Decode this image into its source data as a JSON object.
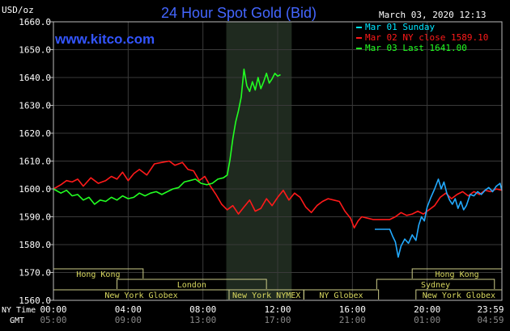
{
  "chart_data": {
    "type": "line",
    "title": "24 Hour Spot Gold (Bid)",
    "site": "www.kitco.com",
    "timestamp": "March 03, 2020 12:13",
    "ylabel": "USD/oz",
    "ylim": [
      1560,
      1660
    ],
    "y_ticks": [
      "1660.0",
      "1650.0",
      "1640.0",
      "1630.0",
      "1620.0",
      "1610.0",
      "1600.0",
      "1590.0",
      "1580.0",
      "1570.0",
      "1560.0"
    ],
    "y_tick_values": [
      1660,
      1650,
      1640,
      1630,
      1620,
      1610,
      1600,
      1590,
      1580,
      1570,
      1560
    ],
    "xlim": [
      0,
      24
    ],
    "x_ticks": [
      "00:00",
      "04:00",
      "08:00",
      "12:00",
      "16:00",
      "20:00",
      "23:59"
    ],
    "x_tick_hours": [
      0,
      4,
      8,
      12,
      16,
      20,
      24
    ],
    "gmt_ticks": [
      "05:00",
      "09:00",
      "13:00",
      "17:00",
      "21:00",
      "01:00",
      "04:59"
    ],
    "ny_time_label": "NY Time",
    "gmt_label": "GMT",
    "grid": true,
    "shaded_hours": [
      9.25,
      12.75
    ],
    "legend": [
      {
        "text": "Mar 01 Sunday",
        "color": "#00e5ff"
      },
      {
        "text": "Mar 02 NY close 1589.10",
        "color": "#ff1a1a"
      },
      {
        "text": "Mar 03 Last 1641.00",
        "color": "#22ff22"
      }
    ],
    "sessions": [
      {
        "name": "Hong Kong",
        "start": 0,
        "end": 4.8
      },
      {
        "name": "London",
        "start": 3.4,
        "end": 11.4
      },
      {
        "name": "New York Globex",
        "start": 0,
        "end": 9.4
      },
      {
        "name": "New York NYMEX",
        "start": 9.4,
        "end": 13.4
      },
      {
        "name": "NY Globex",
        "start": 13.4,
        "end": 17.4
      },
      {
        "name": "Hong Kong",
        "start": 19.2,
        "end": 24
      },
      {
        "name": "Sydney",
        "start": 17.3,
        "end": 23.6
      },
      {
        "name": "New York Globex",
        "start": 19.4,
        "end": 24
      }
    ],
    "series": [
      {
        "color": "#ff1a1a",
        "x": [
          0,
          0.4,
          0.7,
          1.0,
          1.3,
          1.6,
          2.0,
          2.4,
          2.8,
          3.1,
          3.4,
          3.7,
          4.0,
          4.3,
          4.6,
          5.0,
          5.4,
          5.8,
          6.2,
          6.5,
          6.9,
          7.2,
          7.5,
          7.8,
          8.1,
          8.4,
          8.7,
          9.0,
          9.3,
          9.6,
          9.9,
          10.2,
          10.5,
          10.8,
          11.1,
          11.4,
          11.7,
          12.0,
          12.3,
          12.6,
          12.9,
          13.2,
          13.5,
          13.8,
          14.1,
          14.4,
          14.7,
          15.0,
          15.3,
          15.6,
          15.9,
          16.1,
          16.3,
          16.5,
          16.8,
          17.1,
          17.4,
          17.7,
          18.0,
          18.3,
          18.6,
          18.9,
          19.2,
          19.5,
          19.8,
          20.1,
          20.4,
          20.7,
          21.0,
          21.3,
          21.6,
          21.9,
          22.2,
          22.5,
          22.8,
          23.1,
          23.4,
          23.7,
          24.0
        ],
        "values": [
          1600.0,
          1601.5,
          1603.0,
          1602.5,
          1603.5,
          1601.0,
          1604.0,
          1602.0,
          1603.0,
          1604.5,
          1603.5,
          1606.0,
          1603.0,
          1605.5,
          1607.0,
          1605.0,
          1609.0,
          1609.5,
          1610.0,
          1608.5,
          1609.5,
          1607.0,
          1606.5,
          1603.0,
          1604.5,
          1601.0,
          1598.0,
          1594.5,
          1592.5,
          1594.0,
          1591.0,
          1593.5,
          1596.0,
          1592.0,
          1593.0,
          1596.5,
          1594.0,
          1597.0,
          1599.5,
          1596.0,
          1598.5,
          1597.0,
          1593.5,
          1591.5,
          1594.0,
          1595.5,
          1596.5,
          1596.0,
          1595.5,
          1592.0,
          1589.5,
          1586.0,
          1588.5,
          1590.0,
          1589.5,
          1589.0,
          1589.0,
          1589.0,
          1589.0,
          1590.0,
          1591.5,
          1590.5,
          1591.0,
          1592.0,
          1591.0,
          1592.5,
          1594.0,
          1597.0,
          1598.5,
          1596.5,
          1598.0,
          1599.0,
          1597.5,
          1599.0,
          1598.0,
          1599.5,
          1599.0,
          1600.0,
          1599.5
        ]
      },
      {
        "color": "#22ff22",
        "x": [
          0,
          0.4,
          0.7,
          1.0,
          1.3,
          1.6,
          1.9,
          2.2,
          2.5,
          2.8,
          3.1,
          3.4,
          3.7,
          4.0,
          4.3,
          4.6,
          4.9,
          5.2,
          5.5,
          5.8,
          6.1,
          6.4,
          6.7,
          7.0,
          7.3,
          7.6,
          7.9,
          8.2,
          8.5,
          8.8,
          9.1,
          9.3,
          9.45,
          9.6,
          9.75,
          9.9,
          10.05,
          10.2,
          10.35,
          10.5,
          10.65,
          10.8,
          10.95,
          11.1,
          11.25,
          11.4,
          11.55,
          11.7,
          11.85,
          12.0,
          12.15
        ],
        "values": [
          1600.0,
          1598.5,
          1599.5,
          1597.5,
          1598.0,
          1596.0,
          1597.0,
          1594.5,
          1596.0,
          1595.5,
          1597.0,
          1596.0,
          1597.5,
          1596.5,
          1597.0,
          1598.5,
          1597.5,
          1598.5,
          1599.0,
          1598.0,
          1599.0,
          1600.0,
          1600.5,
          1602.5,
          1603.0,
          1603.5,
          1602.0,
          1601.5,
          1602.0,
          1603.5,
          1604.0,
          1605.0,
          1610.5,
          1618.0,
          1624.0,
          1628.0,
          1633.0,
          1643.0,
          1637.0,
          1635.0,
          1638.5,
          1635.5,
          1640.0,
          1636.0,
          1638.5,
          1641.5,
          1638.0,
          1639.5,
          1641.5,
          1640.5,
          1641.0
        ]
      },
      {
        "color": "#22aaff",
        "x": [
          17.2,
          17.5,
          17.8,
          18.0,
          18.15,
          18.3,
          18.45,
          18.6,
          18.8,
          19.0,
          19.2,
          19.4,
          19.55,
          19.7,
          19.85,
          20.0,
          20.2,
          20.4,
          20.6,
          20.75,
          20.9,
          21.05,
          21.2,
          21.35,
          21.5,
          21.65,
          21.8,
          21.95,
          22.1,
          22.3,
          22.5,
          22.7,
          22.9,
          23.1,
          23.3,
          23.5,
          23.7,
          23.9,
          24.0
        ],
        "values": [
          1585.5,
          1585.5,
          1585.5,
          1585.5,
          1583.0,
          1581.0,
          1575.5,
          1579.5,
          1582.0,
          1580.5,
          1583.5,
          1581.5,
          1587.0,
          1590.0,
          1588.5,
          1593.5,
          1597.0,
          1600.0,
          1603.5,
          1600.0,
          1602.5,
          1598.5,
          1596.0,
          1594.5,
          1596.5,
          1593.0,
          1595.5,
          1592.5,
          1594.0,
          1598.0,
          1597.5,
          1599.0,
          1598.0,
          1599.5,
          1600.5,
          1599.0,
          1601.0,
          1602.0,
          1599.5
        ]
      }
    ]
  }
}
